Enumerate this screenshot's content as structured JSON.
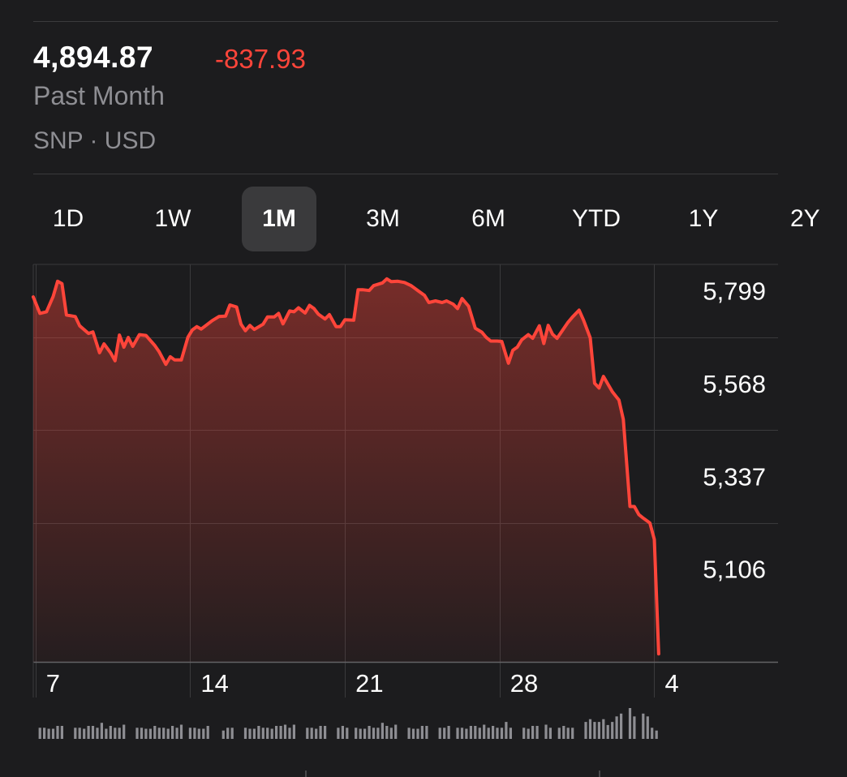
{
  "header": {
    "price": "4,894.87",
    "change": "-837.93",
    "period": "Past Month",
    "exchange": "SNP · USD"
  },
  "tabs": [
    {
      "label": "1D",
      "active": false
    },
    {
      "label": "1W",
      "active": false
    },
    {
      "label": "1M",
      "active": true
    },
    {
      "label": "3M",
      "active": false
    },
    {
      "label": "6M",
      "active": false
    },
    {
      "label": "YTD",
      "active": false
    },
    {
      "label": "1Y",
      "active": false
    },
    {
      "label": "2Y",
      "active": false
    }
  ],
  "colors": {
    "background": "#1c1c1e",
    "line": "#ff453a",
    "grid": "#3a3a3c",
    "secondary_text": "#8e8e93",
    "volume": "#8e8e93"
  },
  "chart_data": {
    "type": "area",
    "x_tick_labels": [
      "7",
      "14",
      "21",
      "28",
      "4"
    ],
    "x_tick_positions": [
      6,
      13,
      20,
      27,
      34
    ],
    "xlim": [
      5.9,
      39.6
    ],
    "y_tick_labels": [
      "5,799",
      "5,568",
      "5,337",
      "5,106"
    ],
    "y_tick_values": [
      5799,
      5568,
      5337,
      5106
    ],
    "ylim": [
      4875,
      5865
    ],
    "grid": true,
    "points": [
      [
        5.9,
        5784
      ],
      [
        6.2,
        5743
      ],
      [
        6.5,
        5747
      ],
      [
        6.8,
        5785
      ],
      [
        7.0,
        5823
      ],
      [
        7.2,
        5817
      ],
      [
        7.4,
        5739
      ],
      [
        7.8,
        5735
      ],
      [
        8.0,
        5712
      ],
      [
        8.4,
        5693
      ],
      [
        8.6,
        5697
      ],
      [
        8.9,
        5645
      ],
      [
        9.1,
        5667
      ],
      [
        9.4,
        5645
      ],
      [
        9.6,
        5625
      ],
      [
        9.8,
        5689
      ],
      [
        10.0,
        5659
      ],
      [
        10.2,
        5683
      ],
      [
        10.4,
        5661
      ],
      [
        10.7,
        5690
      ],
      [
        11.0,
        5688
      ],
      [
        11.4,
        5663
      ],
      [
        11.6,
        5647
      ],
      [
        11.9,
        5616
      ],
      [
        12.1,
        5635
      ],
      [
        12.3,
        5627
      ],
      [
        12.6,
        5627
      ],
      [
        12.9,
        5684
      ],
      [
        13.1,
        5702
      ],
      [
        13.3,
        5710
      ],
      [
        13.5,
        5704
      ],
      [
        14.0,
        5725
      ],
      [
        14.3,
        5735
      ],
      [
        14.6,
        5736
      ],
      [
        14.8,
        5764
      ],
      [
        15.1,
        5759
      ],
      [
        15.3,
        5716
      ],
      [
        15.5,
        5700
      ],
      [
        15.7,
        5713
      ],
      [
        15.9,
        5703
      ],
      [
        16.3,
        5716
      ],
      [
        16.5,
        5734
      ],
      [
        16.8,
        5734
      ],
      [
        17.0,
        5743
      ],
      [
        17.2,
        5717
      ],
      [
        17.5,
        5749
      ],
      [
        17.7,
        5747
      ],
      [
        17.9,
        5757
      ],
      [
        18.2,
        5744
      ],
      [
        18.4,
        5763
      ],
      [
        18.6,
        5755
      ],
      [
        18.8,
        5741
      ],
      [
        19.1,
        5729
      ],
      [
        19.3,
        5740
      ],
      [
        19.6,
        5710
      ],
      [
        19.8,
        5710
      ],
      [
        20.0,
        5727
      ],
      [
        20.4,
        5726
      ],
      [
        20.6,
        5802
      ],
      [
        20.8,
        5802
      ],
      [
        21.1,
        5800
      ],
      [
        21.3,
        5812
      ],
      [
        21.7,
        5819
      ],
      [
        21.9,
        5829
      ],
      [
        22.1,
        5822
      ],
      [
        22.4,
        5823
      ],
      [
        22.7,
        5820
      ],
      [
        23.0,
        5812
      ],
      [
        23.3,
        5800
      ],
      [
        23.6,
        5788
      ],
      [
        23.8,
        5770
      ],
      [
        24.1,
        5774
      ],
      [
        24.4,
        5770
      ],
      [
        24.6,
        5774
      ],
      [
        24.9,
        5766
      ],
      [
        25.1,
        5755
      ],
      [
        25.3,
        5780
      ],
      [
        25.6,
        5761
      ],
      [
        25.9,
        5706
      ],
      [
        26.2,
        5696
      ],
      [
        26.4,
        5683
      ],
      [
        26.6,
        5674
      ],
      [
        26.9,
        5674
      ],
      [
        27.1,
        5673
      ],
      [
        27.4,
        5619
      ],
      [
        27.6,
        5651
      ],
      [
        27.8,
        5659
      ],
      [
        28.0,
        5677
      ],
      [
        28.3,
        5690
      ],
      [
        28.5,
        5681
      ],
      [
        28.8,
        5712
      ],
      [
        29.0,
        5668
      ],
      [
        29.2,
        5713
      ],
      [
        29.4,
        5691
      ],
      [
        29.6,
        5681
      ],
      [
        29.8,
        5697
      ],
      [
        30.1,
        5721
      ],
      [
        30.3,
        5734
      ],
      [
        30.6,
        5751
      ],
      [
        30.8,
        5726
      ],
      [
        31.1,
        5682
      ],
      [
        31.3,
        5569
      ],
      [
        31.5,
        5557
      ],
      [
        31.7,
        5586
      ],
      [
        32.1,
        5548
      ],
      [
        32.4,
        5527
      ],
      [
        32.6,
        5479
      ],
      [
        32.9,
        5262
      ],
      [
        33.1,
        5262
      ],
      [
        33.3,
        5242
      ],
      [
        33.5,
        5233
      ],
      [
        33.8,
        5221
      ],
      [
        34.0,
        5180
      ],
      [
        34.2,
        4894.87
      ]
    ],
    "volume": [
      [
        6.2,
        0.36
      ],
      [
        6.4,
        0.36
      ],
      [
        6.6,
        0.33
      ],
      [
        6.8,
        0.33
      ],
      [
        7.0,
        0.42
      ],
      [
        7.2,
        0.42
      ],
      [
        7.8,
        0.36
      ],
      [
        8.0,
        0.36
      ],
      [
        8.2,
        0.33
      ],
      [
        8.4,
        0.42
      ],
      [
        8.6,
        0.42
      ],
      [
        8.8,
        0.36
      ],
      [
        9.0,
        0.52
      ],
      [
        9.2,
        0.33
      ],
      [
        9.4,
        0.42
      ],
      [
        9.6,
        0.36
      ],
      [
        9.8,
        0.36
      ],
      [
        10.0,
        0.46
      ],
      [
        10.6,
        0.36
      ],
      [
        10.8,
        0.36
      ],
      [
        11.0,
        0.33
      ],
      [
        11.2,
        0.33
      ],
      [
        11.4,
        0.42
      ],
      [
        11.6,
        0.36
      ],
      [
        11.8,
        0.36
      ],
      [
        12.0,
        0.33
      ],
      [
        12.2,
        0.42
      ],
      [
        12.4,
        0.36
      ],
      [
        12.6,
        0.46
      ],
      [
        13.0,
        0.36
      ],
      [
        13.2,
        0.36
      ],
      [
        13.4,
        0.33
      ],
      [
        13.6,
        0.33
      ],
      [
        13.8,
        0.42
      ],
      [
        14.5,
        0.27
      ],
      [
        14.7,
        0.36
      ],
      [
        14.9,
        0.36
      ],
      [
        15.5,
        0.36
      ],
      [
        15.7,
        0.33
      ],
      [
        15.9,
        0.33
      ],
      [
        16.1,
        0.42
      ],
      [
        16.3,
        0.36
      ],
      [
        16.5,
        0.36
      ],
      [
        16.7,
        0.33
      ],
      [
        16.9,
        0.42
      ],
      [
        17.1,
        0.42
      ],
      [
        17.3,
        0.46
      ],
      [
        17.5,
        0.36
      ],
      [
        17.7,
        0.46
      ],
      [
        18.3,
        0.36
      ],
      [
        18.5,
        0.36
      ],
      [
        18.7,
        0.33
      ],
      [
        18.9,
        0.42
      ],
      [
        19.1,
        0.42
      ],
      [
        19.7,
        0.36
      ],
      [
        19.9,
        0.42
      ],
      [
        20.1,
        0.36
      ],
      [
        20.5,
        0.36
      ],
      [
        20.7,
        0.33
      ],
      [
        20.9,
        0.33
      ],
      [
        21.1,
        0.42
      ],
      [
        21.3,
        0.36
      ],
      [
        21.5,
        0.36
      ],
      [
        21.7,
        0.52
      ],
      [
        21.9,
        0.42
      ],
      [
        22.1,
        0.36
      ],
      [
        22.3,
        0.46
      ],
      [
        22.9,
        0.36
      ],
      [
        23.1,
        0.33
      ],
      [
        23.3,
        0.33
      ],
      [
        23.5,
        0.42
      ],
      [
        23.7,
        0.42
      ],
      [
        24.3,
        0.36
      ],
      [
        24.5,
        0.36
      ],
      [
        24.7,
        0.42
      ],
      [
        25.1,
        0.36
      ],
      [
        25.3,
        0.36
      ],
      [
        25.5,
        0.33
      ],
      [
        25.7,
        0.42
      ],
      [
        25.9,
        0.42
      ],
      [
        26.1,
        0.36
      ],
      [
        26.3,
        0.46
      ],
      [
        26.5,
        0.36
      ],
      [
        26.7,
        0.42
      ],
      [
        26.9,
        0.36
      ],
      [
        27.1,
        0.36
      ],
      [
        27.3,
        0.55
      ],
      [
        27.5,
        0.36
      ],
      [
        28.1,
        0.36
      ],
      [
        28.3,
        0.33
      ],
      [
        28.5,
        0.42
      ],
      [
        28.7,
        0.42
      ],
      [
        29.1,
        0.46
      ],
      [
        29.3,
        0.36
      ],
      [
        29.7,
        0.36
      ],
      [
        29.9,
        0.42
      ],
      [
        30.1,
        0.36
      ],
      [
        30.3,
        0.36
      ],
      [
        30.9,
        0.55
      ],
      [
        31.1,
        0.64
      ],
      [
        31.3,
        0.55
      ],
      [
        31.5,
        0.55
      ],
      [
        31.7,
        0.64
      ],
      [
        31.9,
        0.45
      ],
      [
        32.1,
        0.55
      ],
      [
        32.3,
        0.73
      ],
      [
        32.5,
        0.82
      ],
      [
        32.9,
        1.0
      ],
      [
        33.1,
        0.73
      ],
      [
        33.5,
        0.82
      ],
      [
        33.7,
        0.73
      ],
      [
        33.9,
        0.36
      ],
      [
        34.1,
        0.27
      ]
    ]
  }
}
